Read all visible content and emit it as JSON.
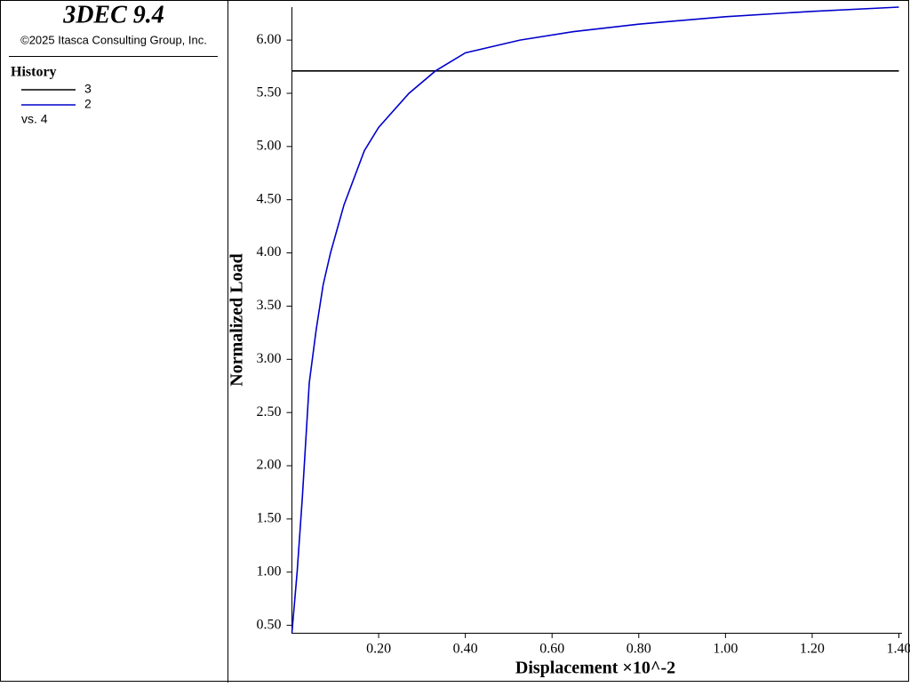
{
  "app_title": "3DEC 9.4",
  "copyright": "©2025 Itasca Consulting Group, Inc.",
  "history_label": "History",
  "vs_label": "vs. 4",
  "chart_data": {
    "type": "line",
    "xlabel": "Displacement ×10^-2",
    "ylabel": "Normalized Load",
    "xlim": [
      0,
      1.4
    ],
    "ylim": [
      0.43,
      6.31
    ],
    "xticks": [
      {
        "value": 0.2,
        "label": "0.20"
      },
      {
        "value": 0.4,
        "label": "0.40"
      },
      {
        "value": 0.6,
        "label": "0.60"
      },
      {
        "value": 0.8,
        "label": "0.80"
      },
      {
        "value": 1.0,
        "label": "1.00"
      },
      {
        "value": 1.2,
        "label": "1.20"
      },
      {
        "value": 1.4,
        "label": "1.40"
      }
    ],
    "yticks": [
      {
        "value": 0.5,
        "label": "0.50"
      },
      {
        "value": 1.0,
        "label": "1.00"
      },
      {
        "value": 1.5,
        "label": "1.50"
      },
      {
        "value": 2.0,
        "label": "2.00"
      },
      {
        "value": 2.5,
        "label": "2.50"
      },
      {
        "value": 3.0,
        "label": "3.00"
      },
      {
        "value": 3.5,
        "label": "3.50"
      },
      {
        "value": 4.0,
        "label": "4.00"
      },
      {
        "value": 4.5,
        "label": "4.50"
      },
      {
        "value": 5.0,
        "label": "5.00"
      },
      {
        "value": 5.5,
        "label": "5.50"
      },
      {
        "value": 6.0,
        "label": "6.00"
      }
    ],
    "series": [
      {
        "name": "3",
        "color": "#000000",
        "x": [
          0,
          1.4
        ],
        "values": [
          5.71,
          5.71
        ]
      },
      {
        "name": "2",
        "color": "#0000cc",
        "x": [
          0,
          0.012,
          0.024,
          0.04,
          0.056,
          0.072,
          0.089,
          0.12,
          0.167,
          0.2,
          0.27,
          0.331,
          0.4,
          0.526,
          0.65,
          0.8,
          1.0,
          1.2,
          1.4
        ],
        "values": [
          0.43,
          1.0,
          1.7,
          2.78,
          3.28,
          3.7,
          4.0,
          4.45,
          4.96,
          5.18,
          5.5,
          5.71,
          5.88,
          6.0,
          6.08,
          6.15,
          6.22,
          6.27,
          6.31
        ]
      }
    ]
  }
}
